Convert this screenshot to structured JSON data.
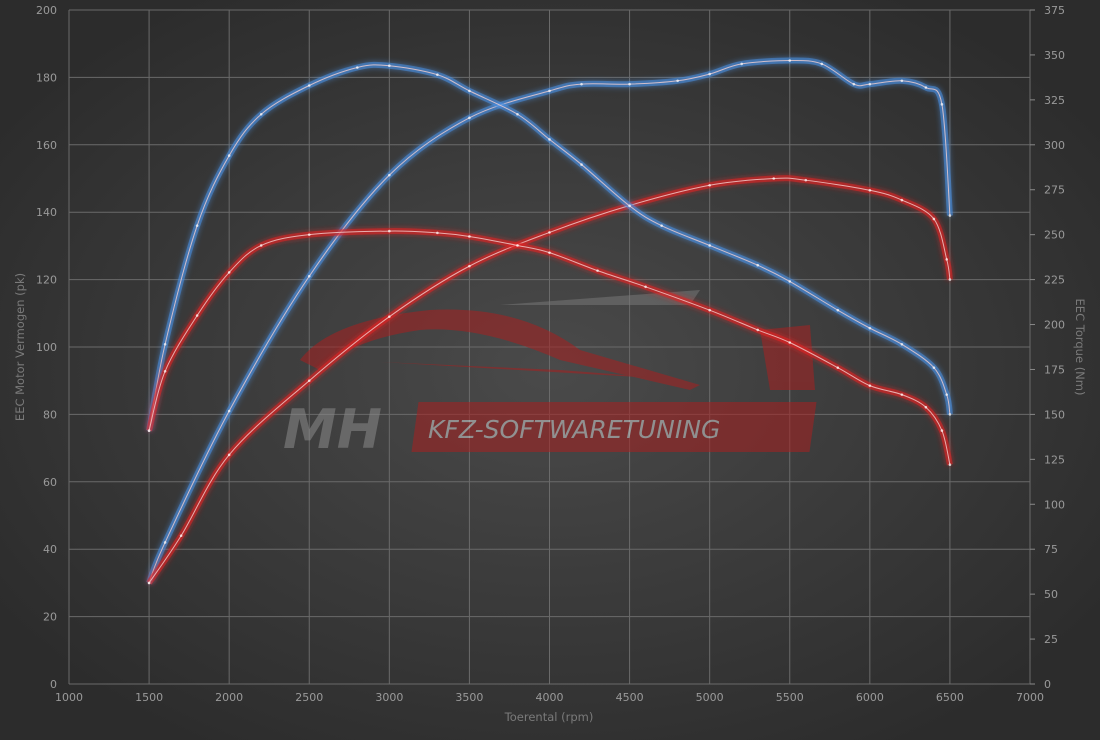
{
  "chart_data": {
    "type": "line",
    "title": "",
    "xlabel": "Toerental (rpm)",
    "ylabel_left": "EEC Motor Vermogen (pk)",
    "ylabel_right": "EEC Torque (Nm)",
    "xlim": [
      1000,
      7000
    ],
    "ylim_left": [
      0,
      200
    ],
    "ylim_right": [
      0,
      375
    ],
    "x_ticks": [
      1000,
      1500,
      2000,
      2500,
      3000,
      3500,
      4000,
      4500,
      5000,
      5500,
      6000,
      6500,
      7000
    ],
    "y_ticks_left": [
      0,
      20,
      40,
      60,
      80,
      100,
      120,
      140,
      160,
      180,
      200
    ],
    "y_ticks_right": [
      0,
      25,
      50,
      75,
      100,
      125,
      150,
      175,
      200,
      225,
      250,
      275,
      300,
      325,
      350,
      375
    ],
    "grid": true,
    "series": [
      {
        "axis": "left",
        "color": "#4a90e2",
        "points": [
          [
            1500,
            30
          ],
          [
            1600,
            42
          ],
          [
            2000,
            81
          ],
          [
            2500,
            121
          ],
          [
            3000,
            151
          ],
          [
            3500,
            168
          ],
          [
            4000,
            176
          ],
          [
            4200,
            178
          ],
          [
            4500,
            178
          ],
          [
            4800,
            179
          ],
          [
            5000,
            181
          ],
          [
            5200,
            184
          ],
          [
            5500,
            185
          ],
          [
            5700,
            184
          ],
          [
            5900,
            178
          ],
          [
            6000,
            178
          ],
          [
            6200,
            179
          ],
          [
            6350,
            177
          ],
          [
            6450,
            172
          ],
          [
            6500,
            139
          ]
        ]
      },
      {
        "axis": "left",
        "color": "#e02424",
        "points": [
          [
            1500,
            30
          ],
          [
            1700,
            44
          ],
          [
            2000,
            68
          ],
          [
            2500,
            90
          ],
          [
            3000,
            109
          ],
          [
            3500,
            124
          ],
          [
            4000,
            134
          ],
          [
            4500,
            142
          ],
          [
            5000,
            148
          ],
          [
            5400,
            150
          ],
          [
            5600,
            149.5
          ],
          [
            6000,
            146.5
          ],
          [
            6200,
            143.6
          ],
          [
            6400,
            138
          ],
          [
            6480,
            126
          ],
          [
            6500,
            120
          ]
        ]
      },
      {
        "axis": "right",
        "color": "#4a90e2",
        "points": [
          [
            1500,
            141
          ],
          [
            1600,
            189
          ],
          [
            1800,
            255
          ],
          [
            2000,
            294
          ],
          [
            2200,
            317
          ],
          [
            2500,
            333
          ],
          [
            2800,
            343
          ],
          [
            3000,
            344
          ],
          [
            3300,
            339
          ],
          [
            3500,
            330
          ],
          [
            3800,
            317
          ],
          [
            4000,
            303
          ],
          [
            4200,
            289
          ],
          [
            4500,
            266
          ],
          [
            4700,
            255
          ],
          [
            5000,
            244
          ],
          [
            5300,
            233
          ],
          [
            5500,
            224
          ],
          [
            5800,
            208
          ],
          [
            6000,
            198
          ],
          [
            6200,
            189
          ],
          [
            6400,
            176
          ],
          [
            6480,
            161
          ],
          [
            6500,
            150
          ]
        ]
      },
      {
        "axis": "right",
        "color": "#e02424",
        "points": [
          [
            1500,
            141
          ],
          [
            1600,
            174
          ],
          [
            1800,
            205
          ],
          [
            2000,
            229
          ],
          [
            2200,
            244
          ],
          [
            2500,
            250
          ],
          [
            3000,
            252
          ],
          [
            3300,
            251
          ],
          [
            3500,
            249
          ],
          [
            3800,
            244
          ],
          [
            4000,
            240
          ],
          [
            4300,
            230
          ],
          [
            4600,
            221
          ],
          [
            5000,
            208
          ],
          [
            5300,
            197
          ],
          [
            5500,
            190
          ],
          [
            5800,
            176
          ],
          [
            6000,
            166
          ],
          [
            6200,
            161
          ],
          [
            6350,
            154
          ],
          [
            6450,
            141
          ],
          [
            6500,
            122
          ]
        ]
      }
    ]
  },
  "watermark": {
    "logo_left": "MH",
    "logo_right": "KFZ-SOFTWARETUNING"
  }
}
